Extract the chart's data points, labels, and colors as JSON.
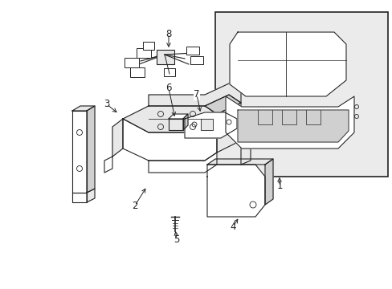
{
  "background_color": "#ffffff",
  "line_color": "#222222",
  "light_gray": "#e8e8e8",
  "mid_gray": "#d0d0d0",
  "box_fill": "#ebebeb",
  "fig_width": 4.89,
  "fig_height": 3.6,
  "dpi": 100,
  "xlim": [
    0,
    489
  ],
  "ylim": [
    0,
    360
  ]
}
